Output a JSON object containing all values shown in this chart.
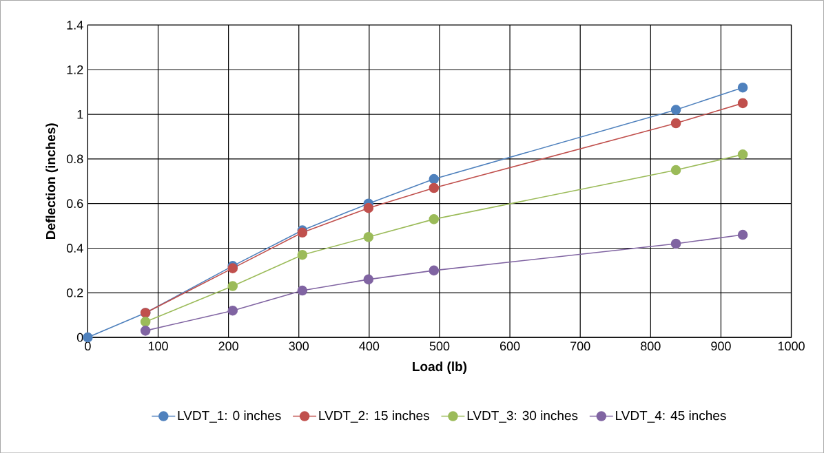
{
  "chart_data": {
    "type": "line",
    "xlabel": "Load (lb)",
    "ylabel": "Deflection (inches)",
    "x": [
      0,
      82,
      206,
      305,
      399,
      492,
      836,
      931
    ],
    "series": [
      {
        "name": "LVDT_1: 0 inches",
        "color": "#4f81bd",
        "values": [
          0,
          0.11,
          0.32,
          0.48,
          0.6,
          0.71,
          1.02,
          1.12
        ]
      },
      {
        "name": "LVDT_2: 15 inches",
        "color": "#c0504d",
        "values": [
          null,
          0.11,
          0.31,
          0.47,
          0.58,
          0.67,
          0.96,
          1.05
        ]
      },
      {
        "name": "LVDT_3: 30 inches",
        "color": "#9bbb59",
        "values": [
          null,
          0.07,
          0.23,
          0.37,
          0.45,
          0.53,
          0.75,
          0.82
        ]
      },
      {
        "name": "LVDT_4: 45 inches",
        "color": "#8064a2",
        "values": [
          null,
          0.03,
          0.12,
          0.21,
          0.26,
          0.3,
          0.42,
          0.46
        ]
      }
    ],
    "xlim": [
      0,
      1000
    ],
    "ylim": [
      0,
      1.4
    ],
    "xticks": [
      0,
      100,
      200,
      300,
      400,
      500,
      600,
      700,
      800,
      900,
      1000
    ],
    "yticks": [
      0,
      0.2,
      0.4,
      0.6,
      0.8,
      1,
      1.2,
      1.4
    ],
    "grid": true,
    "legend": "bottom",
    "marker": "circle",
    "line_style": "solid"
  }
}
